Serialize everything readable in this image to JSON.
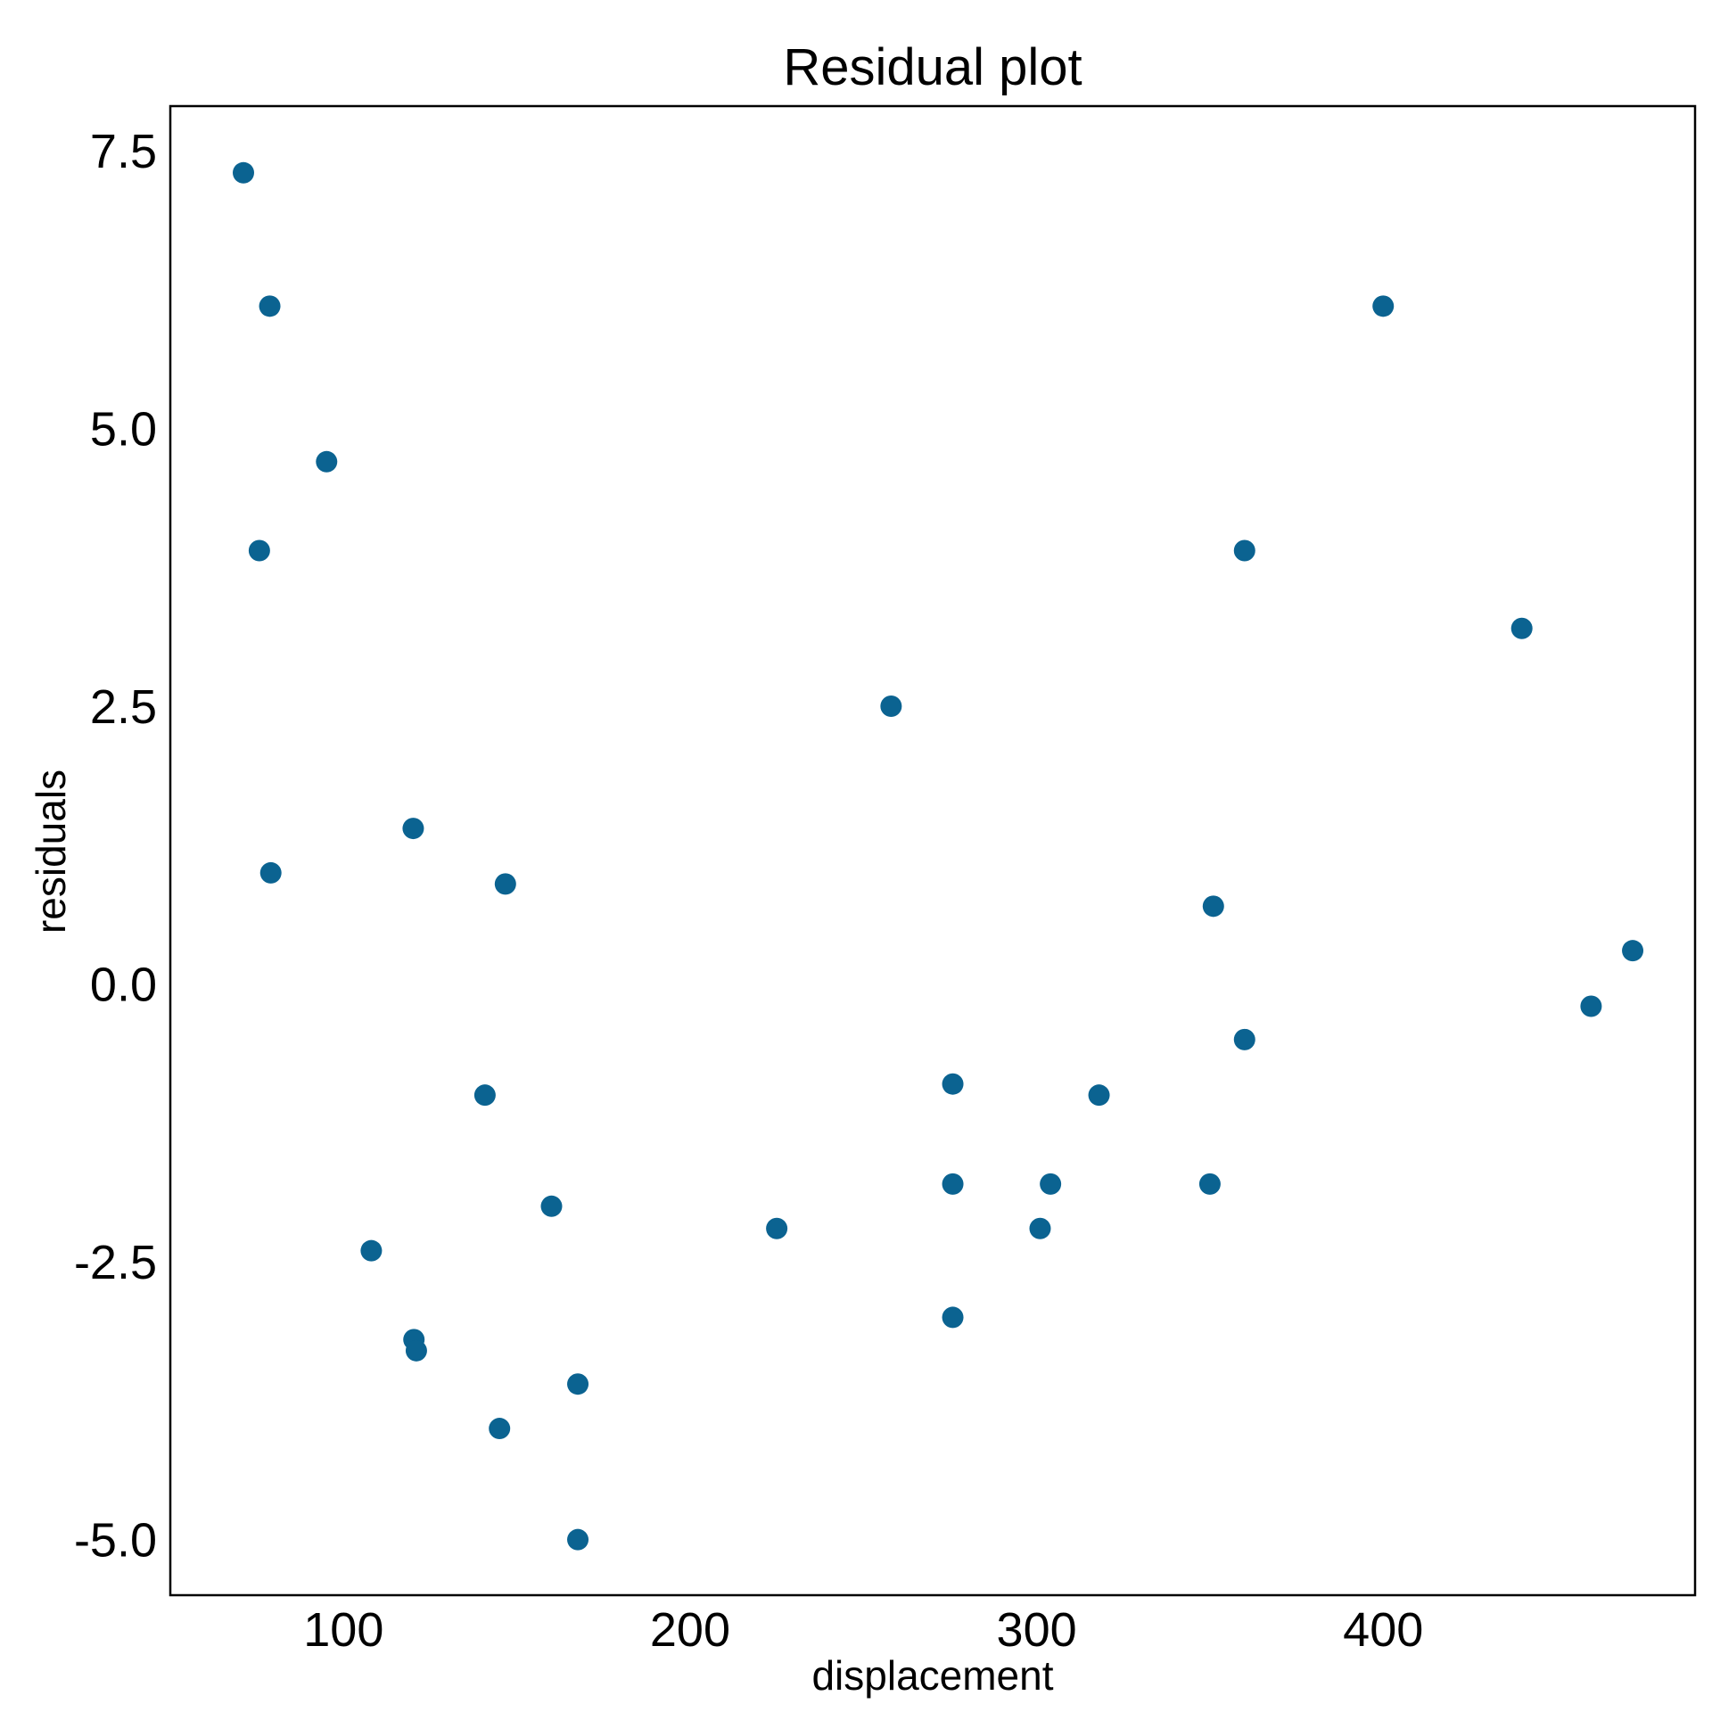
{
  "chart_data": {
    "type": "scatter",
    "title": "Residual plot",
    "xlabel": "displacement",
    "ylabel": "residuals",
    "xlim": [
      50,
      490
    ],
    "ylim": [
      -5.5,
      7.9
    ],
    "x_ticks": [
      100,
      200,
      300,
      400
    ],
    "x_tick_labels": [
      "100",
      "200",
      "300",
      "400"
    ],
    "y_ticks": [
      7.5,
      5.0,
      2.5,
      0.0,
      -2.5,
      -5.0
    ],
    "y_tick_labels": [
      "7.5",
      "5.0",
      "2.5",
      "0.0",
      "-2.5",
      "-5.0"
    ],
    "grid": false,
    "legend": "none",
    "marker_color": "#0b6391",
    "series": [
      {
        "points": [
          [
            71.1,
            7.3
          ],
          [
            78.7,
            6.1
          ],
          [
            75.7,
            3.9
          ],
          [
            79.0,
            1.0
          ],
          [
            95.1,
            4.7
          ],
          [
            108.0,
            -2.4
          ],
          [
            120.1,
            1.4
          ],
          [
            120.3,
            -3.2
          ],
          [
            121.0,
            -3.3
          ],
          [
            140.8,
            -1.0
          ],
          [
            145.0,
            -4.0
          ],
          [
            146.7,
            0.9
          ],
          [
            160.0,
            -2.0
          ],
          [
            167.6,
            -3.6
          ],
          [
            167.6,
            -5.0
          ],
          [
            225.0,
            -2.2
          ],
          [
            258.0,
            2.5
          ],
          [
            275.8,
            -0.9
          ],
          [
            275.8,
            -1.8
          ],
          [
            275.8,
            -3.0
          ],
          [
            301.0,
            -2.2
          ],
          [
            304.0,
            -1.8
          ],
          [
            318.0,
            -1.0
          ],
          [
            350.0,
            -1.8
          ],
          [
            351.0,
            0.7
          ],
          [
            360.0,
            3.9
          ],
          [
            360.0,
            -0.5
          ],
          [
            400.0,
            6.1
          ],
          [
            440.0,
            3.2
          ],
          [
            460.0,
            -0.2
          ],
          [
            472.0,
            0.3
          ]
        ]
      }
    ]
  }
}
